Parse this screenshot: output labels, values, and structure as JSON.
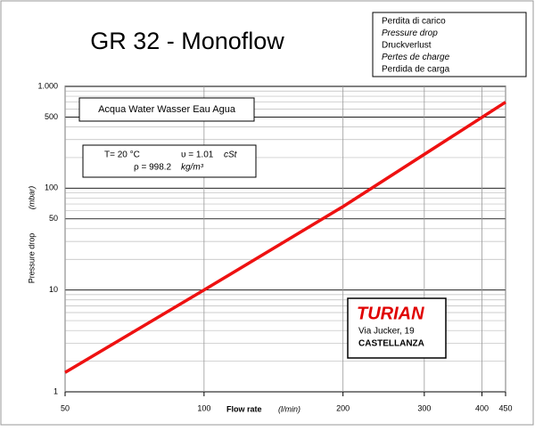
{
  "chart_data": {
    "type": "line",
    "title": "GR 32 - Monoflow",
    "languages_box": [
      "Perdita di carico",
      "Pressure drop",
      "Druckverlust",
      "Pertes de charge",
      "Perdida de carga"
    ],
    "fluid_box": "Acqua  Water  Wasser  Eau  Agua",
    "properties": {
      "temperature": "T= 20 °C",
      "viscosity": "υ = 1.01",
      "viscosity_unit": "cSt",
      "density": "ρ = 998.2",
      "density_unit": "kg/m³"
    },
    "company": {
      "name": "TURIAN",
      "address": "Via Jucker, 19",
      "city": "CASTELLANZA"
    },
    "x_label": "Flow rate",
    "x_unit": "(l/min)",
    "y_label": "Pressure drop",
    "y_unit": "(mbar)",
    "x": [
      50,
      100,
      200,
      450
    ],
    "series": [
      {
        "color": "#ee1111",
        "values": [
          1.55,
          10,
          66,
          700
        ]
      }
    ],
    "xlim": [
      50,
      450
    ],
    "xticks": [
      50,
      100,
      200,
      300,
      400,
      450
    ],
    "ylim": [
      1,
      1000
    ],
    "yticks": [
      1,
      10,
      50,
      100,
      500,
      {
        "value": 1000,
        "label": "1.000"
      }
    ],
    "yminor_ticks": [
      2,
      3,
      4,
      5,
      6,
      7,
      8,
      9,
      20,
      30,
      40,
      50,
      60,
      70,
      80,
      90,
      200,
      300,
      400,
      500,
      600,
      700,
      800,
      900
    ],
    "xlog": true,
    "ylog": true,
    "grid": true
  }
}
